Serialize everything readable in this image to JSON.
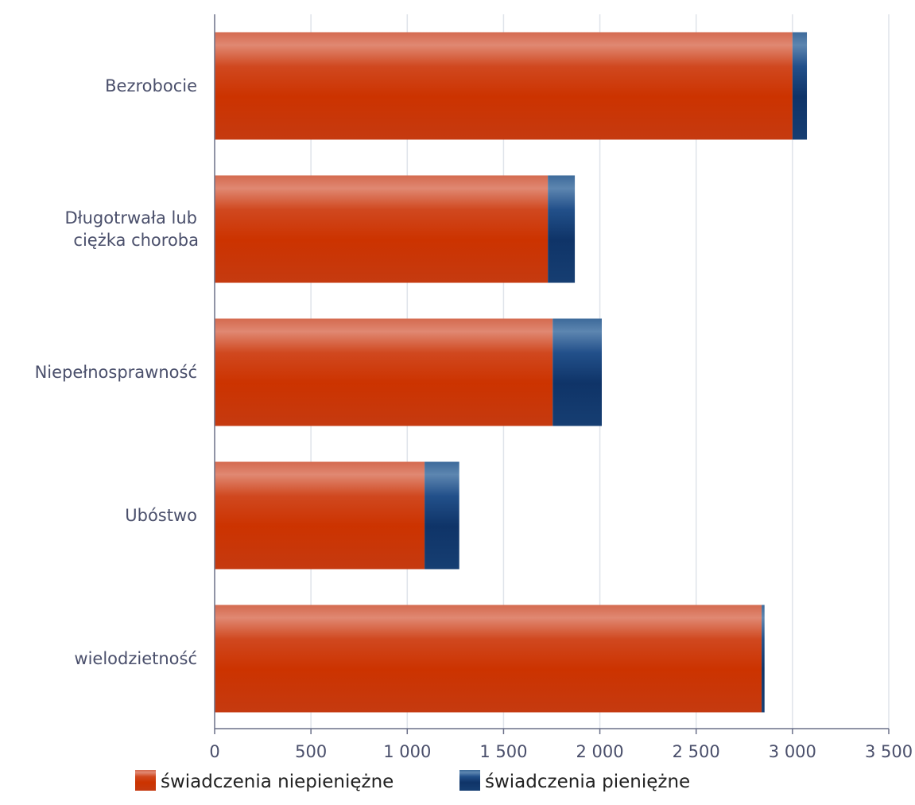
{
  "chart_data": {
    "type": "bar",
    "orientation": "horizontal",
    "stacked": true,
    "categories": [
      [
        "Bezrobocie"
      ],
      [
        "Długotrwała lub",
        "ciężka choroba"
      ],
      [
        "Niepełnosprawność"
      ],
      [
        "Ubóstwo"
      ],
      [
        "wielodzietność"
      ]
    ],
    "series": [
      {
        "name": "świadczenia niepieniężne",
        "color": "#cc3300",
        "values": [
          3000,
          1730,
          1755,
          1090,
          2840
        ]
      },
      {
        "name": "świadczenia pieniężne",
        "color": "#143a6e",
        "values": [
          75,
          140,
          255,
          180,
          15
        ]
      }
    ],
    "xlim": [
      0,
      3500
    ],
    "xticks": [
      0,
      500,
      1000,
      1500,
      2000,
      2500,
      3000,
      3500
    ],
    "xtick_labels": [
      "0",
      "500",
      "1 000",
      "1 500",
      "2 000",
      "2 500",
      "3 000",
      "3 500"
    ],
    "grid": true,
    "legend_position": "bottom"
  }
}
